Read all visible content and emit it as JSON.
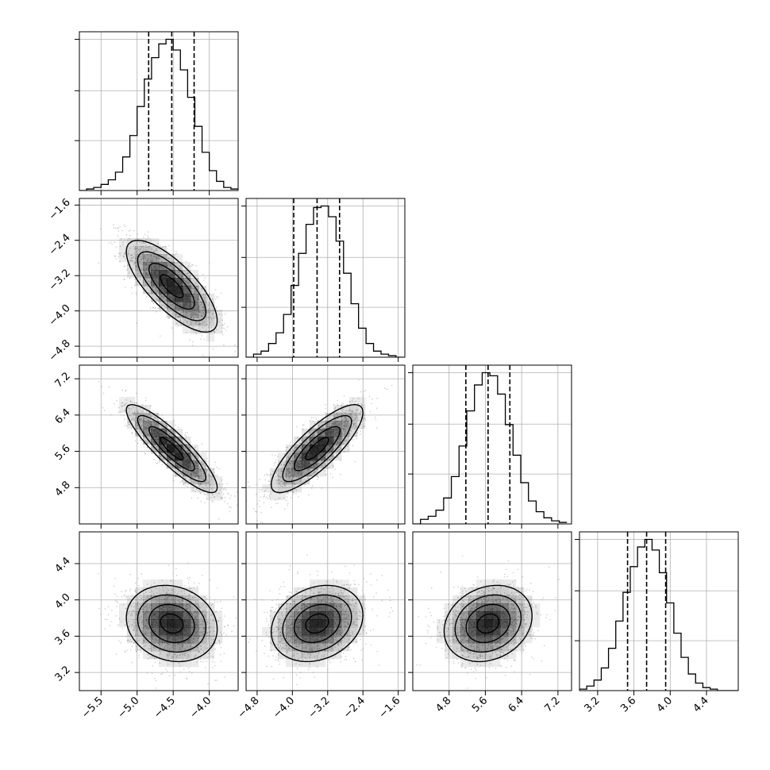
{
  "chart_data": {
    "type": "corner",
    "grid": true,
    "parameters": [
      {
        "axis_range": [
          -5.8,
          -3.6
        ],
        "ticks": [
          -5.5,
          -5.0,
          -4.5,
          -4.0
        ],
        "tick_labels": [
          "−5.5",
          "−5.0",
          "−4.5",
          "−4.0"
        ],
        "mean": -4.52,
        "quantiles": [
          -4.84,
          -4.52,
          -4.21
        ]
      },
      {
        "axis_range": [
          -5.05,
          -1.45
        ],
        "ticks": [
          -4.8,
          -4.0,
          -3.2,
          -2.4,
          -1.6
        ],
        "tick_labels": [
          "−4.8",
          "−4.0",
          "−3.2",
          "−2.4",
          "−1.6"
        ],
        "mean": -3.44,
        "quantiles": [
          -3.97,
          -3.44,
          -2.93
        ]
      },
      {
        "axis_range": [
          4.0,
          7.5
        ],
        "ticks": [
          4.8,
          5.6,
          6.4,
          7.2
        ],
        "tick_labels": [
          "4.8",
          "5.6",
          "6.4",
          "7.2"
        ],
        "mean": 5.66,
        "quantiles": [
          5.17,
          5.66,
          6.14
        ]
      },
      {
        "axis_range": [
          3.0,
          4.75
        ],
        "ticks": [
          3.2,
          3.6,
          4.0,
          4.4
        ],
        "tick_labels": [
          "3.2",
          "3.6",
          "4.0",
          "4.4"
        ],
        "mean": 3.74,
        "quantiles": [
          3.53,
          3.74,
          3.95
        ]
      }
    ],
    "histograms": [
      {
        "bin_edges": [
          -5.8,
          -5.7,
          -5.6,
          -5.5,
          -5.4,
          -5.3,
          -5.2,
          -5.1,
          -5.0,
          -4.9,
          -4.8,
          -4.7,
          -4.6,
          -4.5,
          -4.4,
          -4.3,
          -4.2,
          -4.1,
          -4.0,
          -3.9,
          -3.8,
          -3.7,
          -3.6
        ],
        "counts": [
          0.0,
          0.01,
          0.02,
          0.04,
          0.07,
          0.12,
          0.22,
          0.36,
          0.55,
          0.73,
          0.87,
          0.96,
          0.99,
          0.92,
          0.79,
          0.61,
          0.42,
          0.25,
          0.13,
          0.06,
          0.02,
          0.01
        ]
      },
      {
        "bin_edges": [
          -5.05,
          -4.88,
          -4.71,
          -4.54,
          -4.37,
          -4.2,
          -4.03,
          -3.86,
          -3.69,
          -3.52,
          -3.35,
          -3.18,
          -3.01,
          -2.84,
          -2.67,
          -2.5,
          -2.33,
          -2.16,
          -1.99,
          -1.82,
          -1.65,
          -1.48
        ],
        "counts": [
          0.0,
          0.02,
          0.04,
          0.09,
          0.16,
          0.28,
          0.47,
          0.68,
          0.87,
          0.98,
          0.99,
          0.92,
          0.76,
          0.55,
          0.35,
          0.19,
          0.09,
          0.04,
          0.02,
          0.01,
          0.0
        ]
      },
      {
        "bin_edges": [
          4.0,
          4.17,
          4.34,
          4.51,
          4.68,
          4.85,
          5.02,
          5.19,
          5.36,
          5.53,
          5.7,
          5.87,
          6.04,
          6.21,
          6.38,
          6.55,
          6.72,
          6.89,
          7.06,
          7.23,
          7.4
        ],
        "counts": [
          0.0,
          0.03,
          0.05,
          0.09,
          0.17,
          0.31,
          0.51,
          0.74,
          0.91,
          0.99,
          0.97,
          0.85,
          0.65,
          0.45,
          0.27,
          0.15,
          0.08,
          0.04,
          0.02,
          0.01
        ]
      },
      {
        "bin_edges": [
          3.0,
          3.08,
          3.16,
          3.24,
          3.32,
          3.4,
          3.48,
          3.56,
          3.64,
          3.72,
          3.8,
          3.88,
          3.96,
          4.04,
          4.12,
          4.2,
          4.28,
          4.36,
          4.44,
          4.52,
          4.6,
          4.68,
          4.75
        ],
        "counts": [
          0.01,
          0.03,
          0.07,
          0.15,
          0.28,
          0.46,
          0.65,
          0.82,
          0.95,
          1.0,
          0.93,
          0.78,
          0.58,
          0.38,
          0.22,
          0.11,
          0.05,
          0.02,
          0.01,
          0.0,
          0.0,
          0.0
        ]
      }
    ],
    "pairs": [
      {
        "row": 1,
        "col": 0,
        "correlation": -0.75
      },
      {
        "row": 2,
        "col": 0,
        "correlation": -0.88
      },
      {
        "row": 2,
        "col": 1,
        "correlation": 0.82
      },
      {
        "row": 3,
        "col": 0,
        "correlation": -0.15
      },
      {
        "row": 3,
        "col": 1,
        "correlation": 0.22
      },
      {
        "row": 3,
        "col": 2,
        "correlation": 0.2
      }
    ],
    "contour_levels": [
      0.5,
      1.0,
      1.5,
      2.0
    ],
    "colors": {
      "line": "#000000",
      "grid": "#b0b0b0",
      "scatter": "#909090",
      "fill": "#000000"
    }
  }
}
